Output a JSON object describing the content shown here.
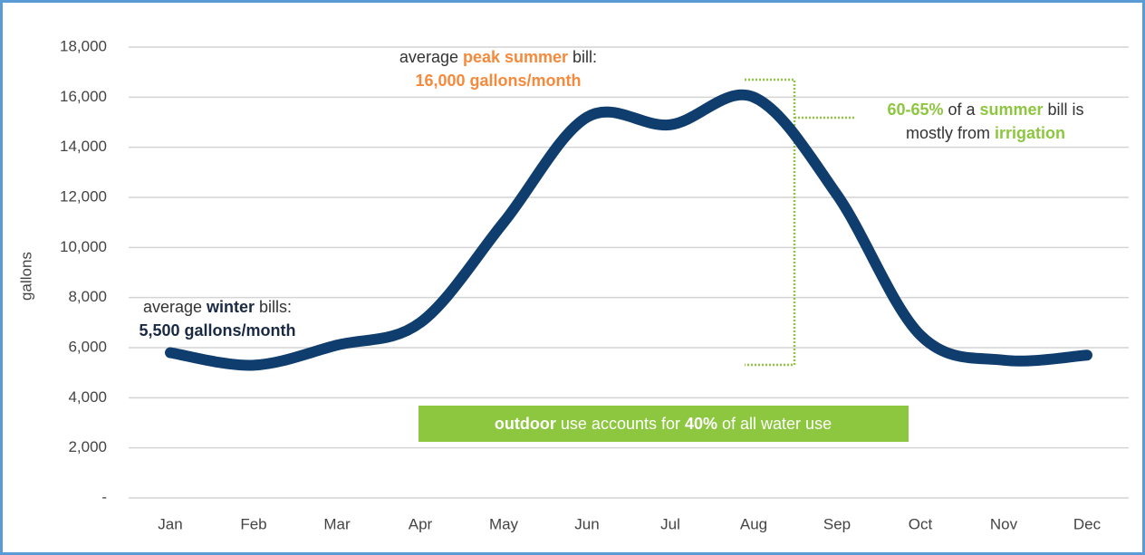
{
  "chart_data": {
    "type": "line",
    "y_label": "gallons",
    "categories": [
      "Jan",
      "Feb",
      "Mar",
      "Apr",
      "May",
      "Jun",
      "Jul",
      "Aug",
      "Sep",
      "Oct",
      "Nov",
      "Dec"
    ],
    "values": [
      5800,
      5300,
      6100,
      7000,
      11000,
      15200,
      14900,
      16000,
      12100,
      6500,
      5500,
      5700
    ],
    "color": "#0f3d6e",
    "ylim": [
      0,
      18000
    ],
    "yticks": [
      {
        "value": 0,
        "label": "-"
      },
      {
        "value": 2000,
        "label": "2,000"
      },
      {
        "value": 4000,
        "label": "4,000"
      },
      {
        "value": 6000,
        "label": "6,000"
      },
      {
        "value": 8000,
        "label": "8,000"
      },
      {
        "value": 10000,
        "label": "10,000"
      },
      {
        "value": 12000,
        "label": "12,000"
      },
      {
        "value": 14000,
        "label": "14,000"
      },
      {
        "value": 16000,
        "label": "16,000"
      },
      {
        "value": 18000,
        "label": "18,000"
      }
    ],
    "grid": true,
    "annotations": {
      "winter": {
        "line1": [
          "average ",
          "winter",
          " bills:"
        ],
        "line2": "5,500 gallons/month"
      },
      "summer": {
        "line1": [
          "average ",
          "peak summer",
          " bill:"
        ],
        "line2": "16,000 gallons/month"
      },
      "irrigation": {
        "line1": [
          "60-65%",
          " of a ",
          "summer",
          " bill is"
        ],
        "line2": [
          "mostly from ",
          "irrigation"
        ]
      },
      "outdoor": [
        "outdoor",
        " use accounts for ",
        "40%",
        " of all water use"
      ]
    }
  }
}
